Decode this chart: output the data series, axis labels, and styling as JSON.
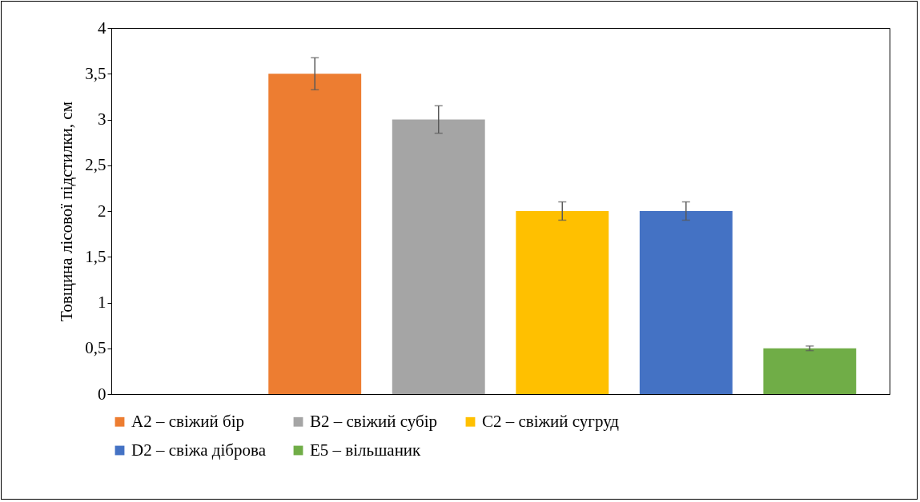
{
  "chart_data": {
    "type": "bar",
    "ylabel": "Товщина лісової підстилки, см",
    "categories": [
      null,
      null,
      null,
      null,
      null,
      null
    ],
    "ylim": [
      0,
      4
    ],
    "yticks": [
      0,
      {
        "value": 0.5,
        "label": "0,5"
      },
      1,
      {
        "value": 1.5,
        "label": "1,5"
      },
      2,
      {
        "value": 2.5,
        "label": "2,5"
      },
      3,
      {
        "value": 3.5,
        "label": "3,5"
      },
      4
    ],
    "grid": false,
    "legend": "bottom",
    "tick_labels": "y",
    "series": [
      {
        "name": "A2 – свіжий бір",
        "color": "#ed7d31",
        "values": [
          null,
          3.5,
          null,
          null,
          null,
          null
        ],
        "errors": [
          null,
          0.175,
          null,
          null,
          null,
          null
        ]
      },
      {
        "name": "B2 – свіжий субір",
        "color": "#a5a5a5",
        "values": [
          null,
          null,
          3.0,
          null,
          null,
          null
        ],
        "errors": [
          null,
          null,
          0.15,
          null,
          null,
          null
        ]
      },
      {
        "name": "C2 – свіжий сугруд",
        "color": "#ffc000",
        "values": [
          null,
          null,
          null,
          2.0,
          null,
          null
        ],
        "errors": [
          null,
          null,
          null,
          0.1,
          null,
          null
        ]
      },
      {
        "name": "D2 – свіжа діброва",
        "color": "#4472c4",
        "values": [
          null,
          null,
          null,
          null,
          2.0,
          null
        ],
        "errors": [
          null,
          null,
          null,
          null,
          0.1,
          null
        ]
      },
      {
        "name": "E5 – вільшаник",
        "color": "#70ad47",
        "values": [
          null,
          null,
          null,
          null,
          null,
          0.5
        ],
        "errors": [
          null,
          null,
          null,
          null,
          null,
          0.025
        ]
      }
    ]
  }
}
